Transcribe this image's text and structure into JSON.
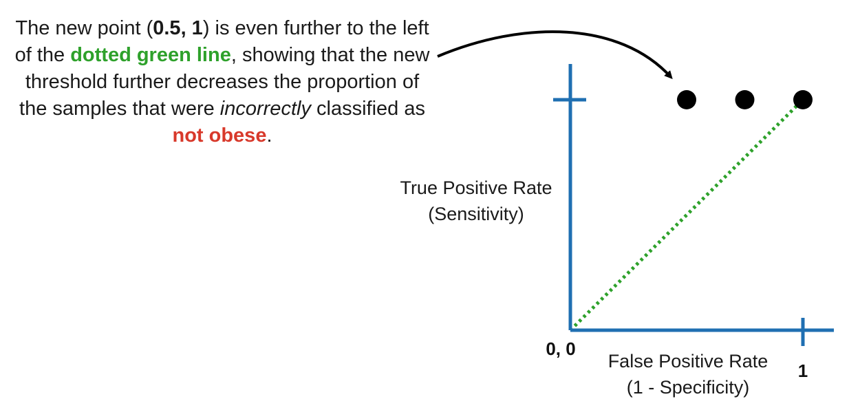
{
  "caption": [
    {
      "text": "The new point (",
      "style": ""
    },
    {
      "text": "0.5, 1",
      "style": "b"
    },
    {
      "text": ") is even further to the left of the ",
      "style": ""
    },
    {
      "text": "dotted green line",
      "style": "g"
    },
    {
      "text": ", showing that the new threshold further decreases the proportion of the samples that were ",
      "style": ""
    },
    {
      "text": "incorrectly",
      "style": "i"
    },
    {
      "text": " classified as ",
      "style": ""
    },
    {
      "text": "not obese",
      "style": "r"
    },
    {
      "text": ".",
      "style": ""
    }
  ],
  "chart_data": {
    "type": "scatter",
    "xlim": [
      0,
      1
    ],
    "ylim": [
      0,
      1
    ],
    "ylabel_line1": "True Positive Rate",
    "ylabel_line2": "(Sensitivity)",
    "xlabel_line1": "False Positive Rate",
    "xlabel_line2": "(1 - Specificity)",
    "origin_label": "0, 0",
    "x_tick_label": "1",
    "points": [
      {
        "x": 0.5,
        "y": 1
      },
      {
        "x": 0.75,
        "y": 1
      },
      {
        "x": 1,
        "y": 1
      }
    ],
    "reference_line": {
      "x": [
        0,
        1
      ],
      "y": [
        0,
        1
      ],
      "style": "dotted"
    },
    "colors": {
      "axis": "#1f6fb2",
      "reference_line": "#2ea12b",
      "points": "#000000",
      "highlight_green": "#2ea12b",
      "highlight_red": "#d8392b"
    }
  }
}
